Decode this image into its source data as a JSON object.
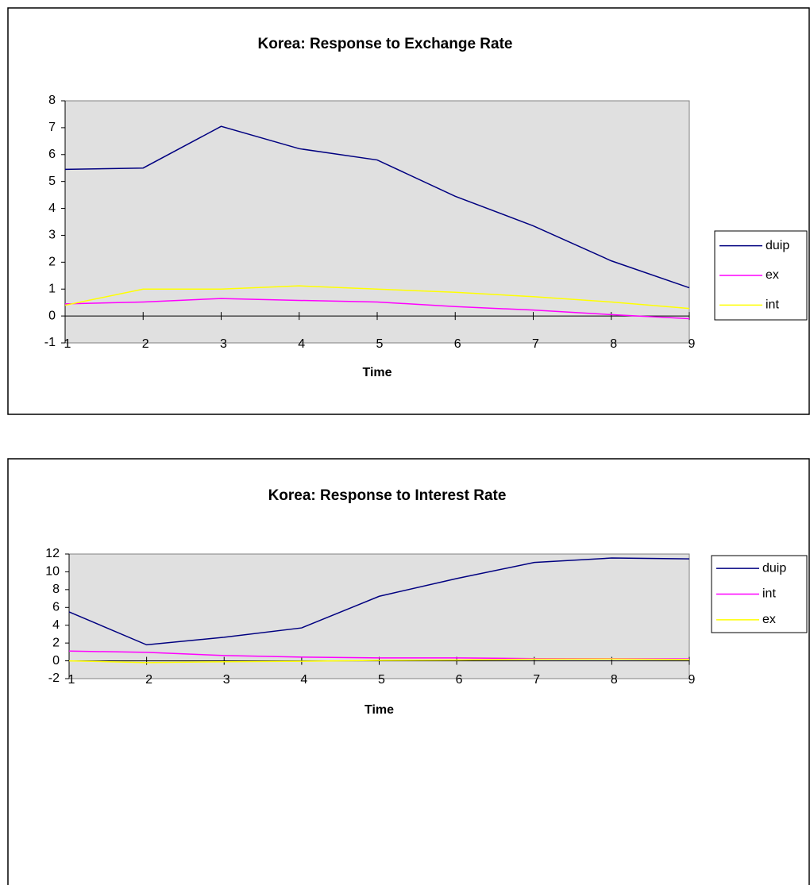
{
  "chart_data": [
    {
      "type": "line",
      "title": "Korea: Response to Exchange Rate",
      "x_label": "Time",
      "x": [
        1,
        2,
        3,
        4,
        5,
        6,
        7,
        8,
        9
      ],
      "xlim": [
        1,
        9
      ],
      "xticks": [
        1,
        2,
        3,
        4,
        5,
        6,
        7,
        8,
        9
      ],
      "ylim": [
        -1,
        8
      ],
      "yticks": [
        -1,
        0,
        1,
        2,
        3,
        4,
        5,
        6,
        7,
        8
      ],
      "legend": "right",
      "series": [
        {
          "name": "duip",
          "color": "#000080",
          "values": [
            5.45,
            5.5,
            7.05,
            6.22,
            5.8,
            4.45,
            3.35,
            2.05,
            1.05
          ]
        },
        {
          "name": "ex",
          "color": "#ff00ff",
          "values": [
            0.45,
            0.52,
            0.65,
            0.58,
            0.52,
            0.35,
            0.22,
            0.05,
            -0.1
          ]
        },
        {
          "name": "int",
          "color": "#ffff00",
          "values": [
            0.4,
            1.0,
            1.0,
            1.12,
            1.0,
            0.88,
            0.72,
            0.52,
            0.28
          ]
        }
      ]
    },
    {
      "type": "line",
      "title": "Korea: Response to Interest Rate",
      "x_label": "Time",
      "x": [
        1,
        2,
        3,
        4,
        5,
        6,
        7,
        8,
        9
      ],
      "xlim": [
        1,
        9
      ],
      "xticks": [
        1,
        2,
        3,
        4,
        5,
        6,
        7,
        8,
        9
      ],
      "ylim": [
        -2,
        12
      ],
      "yticks": [
        -2,
        0,
        2,
        4,
        6,
        8,
        10,
        12
      ],
      "legend": "right",
      "series": [
        {
          "name": "duip",
          "color": "#000080",
          "values": [
            5.5,
            1.8,
            2.65,
            3.7,
            7.25,
            9.25,
            11.05,
            11.55,
            11.45
          ]
        },
        {
          "name": "int",
          "color": "#ff00ff",
          "values": [
            1.1,
            0.95,
            0.6,
            0.42,
            0.33,
            0.33,
            0.25,
            0.25,
            0.22
          ]
        },
        {
          "name": "ex",
          "color": "#ffff00",
          "values": [
            0.0,
            -0.2,
            -0.1,
            -0.05,
            0.05,
            0.1,
            0.2,
            0.22,
            0.15
          ]
        }
      ]
    }
  ]
}
